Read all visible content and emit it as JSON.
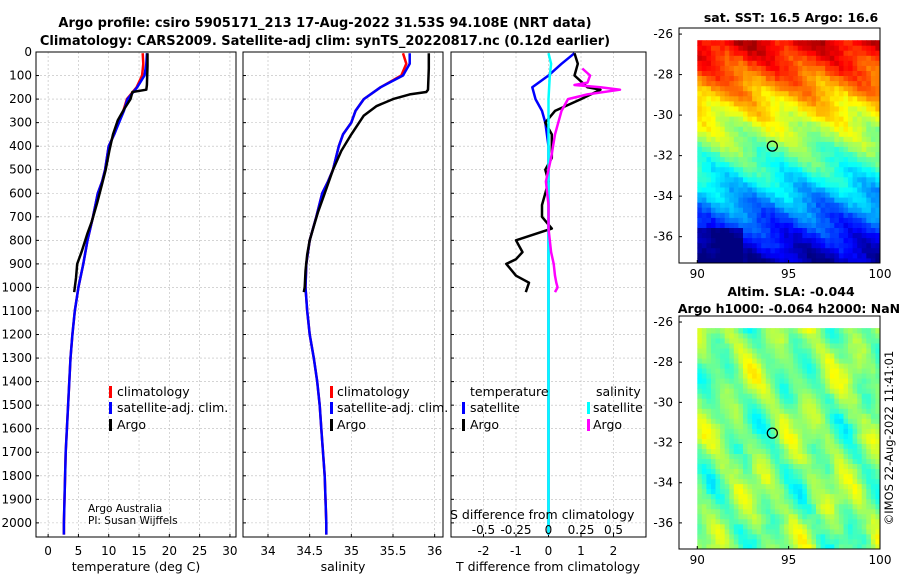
{
  "figure": {
    "title_line1": "Argo profile: csiro 5905171_213 17-Aug-2022 31.53S 94.108E (NRT data)",
    "title_line2": "Climatology: CARS2009. Satellite-adj clim: synTS_20220817.nc (0.12d earlier)",
    "credit_line1": "Argo Australia",
    "credit_line2": "PI: Susan Wijffels",
    "side_stamp": "©IMOS 22-Aug-2022 11:41:01"
  },
  "colors": {
    "climatology": "#ff0000",
    "satellite_adj": "#0000ff",
    "argo": "#000000",
    "temp_satellite": "#0000ff",
    "sal_satellite": "#00ffff",
    "sal_argo": "#ff00ff",
    "grid": "#bbbbbb"
  },
  "legend_main": {
    "climatology": "climatology",
    "satellite": "satellite-adj. clim.",
    "argo": "Argo"
  },
  "legend_diff": {
    "temp_header": "temperature",
    "sal_header": "salinity",
    "temp_satellite": "satellite",
    "temp_argo": "Argo",
    "sal_satellite": "satellite",
    "sal_argo": "Argo"
  },
  "chart_data": [
    {
      "type": "line",
      "id": "temperature",
      "xlabel": "temperature (deg C)",
      "ylabel": "",
      "xlim": [
        -2,
        31
      ],
      "ylim": [
        2060,
        0
      ],
      "xticks": [
        0,
        5,
        10,
        15,
        20,
        25,
        30
      ],
      "yticks": [
        0,
        100,
        200,
        300,
        400,
        500,
        600,
        700,
        800,
        900,
        1000,
        1100,
        1200,
        1300,
        1400,
        1500,
        1600,
        1700,
        1800,
        1900,
        2000
      ],
      "series": [
        {
          "name": "climatology",
          "points": [
            [
              15.6,
              5
            ],
            [
              15.7,
              50
            ],
            [
              15.5,
              100
            ],
            [
              14.6,
              150
            ],
            [
              13.0,
              200
            ],
            [
              12.4,
              250
            ],
            [
              11.6,
              300
            ],
            [
              10.9,
              350
            ],
            [
              10.0,
              400
            ],
            [
              9.4,
              500
            ],
            [
              8.9,
              550
            ],
            [
              8.2,
              600
            ],
            [
              7.4,
              700
            ],
            [
              6.5,
              800
            ],
            [
              5.8,
              900
            ],
            [
              5.0,
              1000
            ],
            [
              4.4,
              1100
            ],
            [
              4.0,
              1200
            ],
            [
              3.7,
              1300
            ],
            [
              3.5,
              1400
            ],
            [
              3.3,
              1500
            ],
            [
              3.1,
              1600
            ],
            [
              2.9,
              1700
            ],
            [
              2.8,
              1800
            ],
            [
              2.7,
              1900
            ],
            [
              2.6,
              2000
            ],
            [
              2.6,
              2050
            ]
          ]
        },
        {
          "name": "satellite-adj. clim.",
          "points": [
            [
              16.3,
              5
            ],
            [
              16.2,
              50
            ],
            [
              15.9,
              100
            ],
            [
              14.7,
              150
            ],
            [
              13.1,
              200
            ],
            [
              12.5,
              250
            ],
            [
              11.7,
              300
            ],
            [
              10.9,
              350
            ],
            [
              10.0,
              400
            ],
            [
              9.4,
              500
            ],
            [
              8.9,
              550
            ],
            [
              8.2,
              600
            ],
            [
              7.4,
              700
            ],
            [
              6.5,
              800
            ],
            [
              5.8,
              900
            ],
            [
              5.0,
              1000
            ],
            [
              4.4,
              1100
            ],
            [
              4.0,
              1200
            ],
            [
              3.7,
              1300
            ],
            [
              3.5,
              1400
            ],
            [
              3.3,
              1500
            ],
            [
              3.1,
              1600
            ],
            [
              2.9,
              1700
            ],
            [
              2.8,
              1800
            ],
            [
              2.7,
              1900
            ],
            [
              2.6,
              2000
            ],
            [
              2.6,
              2050
            ]
          ]
        },
        {
          "name": "Argo",
          "points": [
            [
              16.4,
              5
            ],
            [
              16.4,
              60
            ],
            [
              16.3,
              140
            ],
            [
              16.2,
              160
            ],
            [
              13.9,
              170
            ],
            [
              13.6,
              200
            ],
            [
              12.6,
              240
            ],
            [
              11.5,
              290
            ],
            [
              10.7,
              350
            ],
            [
              10.1,
              420
            ],
            [
              9.5,
              500
            ],
            [
              8.9,
              560
            ],
            [
              8.1,
              640
            ],
            [
              7.2,
              720
            ],
            [
              6.5,
              770
            ],
            [
              5.5,
              850
            ],
            [
              4.8,
              900
            ],
            [
              4.6,
              960
            ],
            [
              4.3,
              1020
            ]
          ]
        }
      ]
    },
    {
      "type": "line",
      "id": "salinity",
      "xlabel": "salinity",
      "ylabel": "",
      "xlim": [
        33.7,
        36.1
      ],
      "ylim": [
        2060,
        0
      ],
      "xticks": [
        34,
        34.5,
        35,
        35.5,
        36
      ],
      "series": [
        {
          "name": "climatology",
          "points": [
            [
              35.62,
              5
            ],
            [
              35.66,
              50
            ],
            [
              35.6,
              100
            ],
            [
              35.35,
              150
            ],
            [
              35.15,
              200
            ],
            [
              35.05,
              250
            ],
            [
              35.0,
              300
            ],
            [
              34.9,
              350
            ],
            [
              34.85,
              400
            ],
            [
              34.78,
              500
            ],
            [
              34.72,
              550
            ],
            [
              34.65,
              600
            ],
            [
              34.58,
              700
            ],
            [
              34.5,
              800
            ],
            [
              34.46,
              900
            ],
            [
              34.45,
              1000
            ],
            [
              34.47,
              1100
            ],
            [
              34.5,
              1200
            ],
            [
              34.55,
              1300
            ],
            [
              34.59,
              1400
            ],
            [
              34.62,
              1500
            ],
            [
              34.64,
              1600
            ],
            [
              34.66,
              1700
            ],
            [
              34.68,
              1800
            ],
            [
              34.69,
              1900
            ],
            [
              34.7,
              2000
            ],
            [
              34.7,
              2050
            ]
          ]
        },
        {
          "name": "satellite-adj. clim.",
          "points": [
            [
              35.7,
              5
            ],
            [
              35.7,
              50
            ],
            [
              35.62,
              100
            ],
            [
              35.35,
              150
            ],
            [
              35.15,
              200
            ],
            [
              35.05,
              250
            ],
            [
              35.0,
              300
            ],
            [
              34.9,
              350
            ],
            [
              34.85,
              400
            ],
            [
              34.78,
              500
            ],
            [
              34.72,
              550
            ],
            [
              34.65,
              600
            ],
            [
              34.58,
              700
            ],
            [
              34.5,
              800
            ],
            [
              34.46,
              900
            ],
            [
              34.45,
              1000
            ],
            [
              34.47,
              1100
            ],
            [
              34.5,
              1200
            ],
            [
              34.55,
              1300
            ],
            [
              34.59,
              1400
            ],
            [
              34.62,
              1500
            ],
            [
              34.64,
              1600
            ],
            [
              34.66,
              1700
            ],
            [
              34.68,
              1800
            ],
            [
              34.69,
              1900
            ],
            [
              34.7,
              2000
            ],
            [
              34.7,
              2050
            ]
          ]
        },
        {
          "name": "Argo",
          "points": [
            [
              35.93,
              5
            ],
            [
              35.93,
              70
            ],
            [
              35.92,
              160
            ],
            [
              35.9,
              170
            ],
            [
              35.7,
              180
            ],
            [
              35.5,
              200
            ],
            [
              35.3,
              230
            ],
            [
              35.15,
              270
            ],
            [
              35.0,
              350
            ],
            [
              34.88,
              420
            ],
            [
              34.78,
              500
            ],
            [
              34.68,
              600
            ],
            [
              34.6,
              680
            ],
            [
              34.55,
              740
            ],
            [
              34.5,
              800
            ],
            [
              34.47,
              860
            ],
            [
              34.45,
              930
            ],
            [
              34.44,
              1000
            ],
            [
              34.43,
              1020
            ]
          ]
        }
      ]
    },
    {
      "type": "line",
      "id": "difference",
      "xlabel": "T difference from climatology",
      "xlabel_top": "S difference from climatology",
      "ylabel": "",
      "xlim": [
        -3,
        3
      ],
      "ylim": [
        2060,
        0
      ],
      "xticks": [
        -2,
        -1,
        0,
        1,
        2
      ],
      "xticks_top": [
        -0.5,
        -0.25,
        0,
        0.25,
        0.5
      ],
      "series": [
        {
          "name": "temperature satellite",
          "points": [
            [
              0.8,
              5
            ],
            [
              0.4,
              50
            ],
            [
              0.0,
              100
            ],
            [
              -0.5,
              150
            ],
            [
              -0.4,
              200
            ],
            [
              -0.2,
              250
            ],
            [
              -0.1,
              300
            ],
            [
              -0.05,
              350
            ],
            [
              0.0,
              400
            ],
            [
              0.0,
              600
            ],
            [
              0.0,
              800
            ],
            [
              0.0,
              1000
            ],
            [
              0.0,
              1500
            ],
            [
              0.0,
              2050
            ]
          ]
        },
        {
          "name": "temperature Argo",
          "points": [
            [
              0.8,
              5
            ],
            [
              0.9,
              50
            ],
            [
              0.8,
              100
            ],
            [
              1.2,
              150
            ],
            [
              1.6,
              160
            ],
            [
              1.0,
              200
            ],
            [
              0.2,
              250
            ],
            [
              -0.1,
              300
            ],
            [
              0.1,
              350
            ],
            [
              0.1,
              400
            ],
            [
              0.1,
              450
            ],
            [
              -0.1,
              500
            ],
            [
              0.0,
              550
            ],
            [
              -0.1,
              600
            ],
            [
              -0.2,
              650
            ],
            [
              -0.2,
              700
            ],
            [
              0.1,
              750
            ],
            [
              -1.0,
              800
            ],
            [
              -0.8,
              850
            ],
            [
              -1.0,
              880
            ],
            [
              -1.3,
              900
            ],
            [
              -1.0,
              950
            ],
            [
              -0.6,
              980
            ],
            [
              -0.7,
              1020
            ]
          ]
        },
        {
          "name": "salinity satellite",
          "points": [
            [
              0.0,
              5
            ],
            [
              0.02,
              50
            ],
            [
              0.01,
              100
            ],
            [
              0.0,
              200
            ],
            [
              0.0,
              400
            ],
            [
              0.0,
              800
            ],
            [
              0.0,
              1200
            ],
            [
              0.0,
              1600
            ],
            [
              0.0,
              2050
            ]
          ]
        },
        {
          "name": "salinity Argo",
          "points": [
            [
              0.26,
              70
            ],
            [
              0.32,
              100
            ],
            [
              0.3,
              130
            ],
            [
              0.2,
              140
            ],
            [
              0.4,
              150
            ],
            [
              0.55,
              160
            ],
            [
              0.3,
              180
            ],
            [
              0.15,
              200
            ],
            [
              0.1,
              250
            ],
            [
              0.05,
              350
            ],
            [
              0.02,
              450
            ],
            [
              -0.02,
              550
            ],
            [
              0.0,
              650
            ],
            [
              0.0,
              750
            ],
            [
              0.02,
              850
            ],
            [
              0.04,
              900
            ],
            [
              0.05,
              950
            ],
            [
              0.06,
              980
            ],
            [
              0.07,
              1000
            ],
            [
              0.05,
              1020
            ]
          ]
        }
      ]
    },
    {
      "type": "heatmap",
      "id": "sst_map",
      "title": "sat. SST: 16.5 Argo: 16.6",
      "xlim": [
        89,
        100
      ],
      "ylim": [
        -37.3,
        -25.7
      ],
      "xticks": [
        90,
        95,
        100
      ],
      "yticks": [
        -26,
        -28,
        -30,
        -32,
        -34,
        -36
      ],
      "marker": [
        94.108,
        -31.53
      ]
    },
    {
      "type": "heatmap",
      "id": "sla_map",
      "title_line1": "Altim. SLA: -0.044",
      "title_line2": "Argo h1000: -0.064 h2000: NaN",
      "xlim": [
        89,
        100
      ],
      "ylim": [
        -37.3,
        -25.7
      ],
      "xticks": [
        90,
        95,
        100
      ],
      "yticks": [
        -26,
        -28,
        -30,
        -32,
        -34,
        -36
      ],
      "marker": [
        94.108,
        -31.53
      ]
    }
  ]
}
